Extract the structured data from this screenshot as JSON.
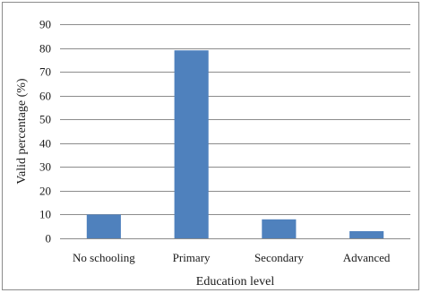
{
  "chart_data": {
    "type": "bar",
    "categories": [
      "No schooling",
      "Primary",
      "Secondary",
      "Advanced"
    ],
    "values": [
      10,
      79,
      8,
      3
    ],
    "title": "",
    "xlabel": "Education level",
    "ylabel": "Valid percentage (%)",
    "ylim": [
      0,
      90
    ],
    "yticks": [
      0,
      10,
      20,
      30,
      40,
      50,
      60,
      70,
      80,
      90
    ],
    "grid": true,
    "legend": "none",
    "bar_color": "#4f81bd",
    "grid_color": "#8c8c8c"
  }
}
